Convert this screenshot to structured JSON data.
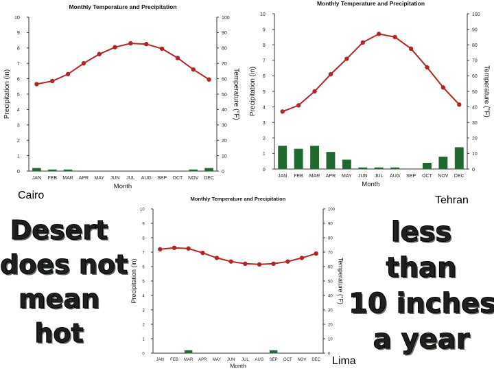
{
  "cities": {
    "cairo": "Cairo",
    "tehran": "Tehran",
    "lima": "Lima"
  },
  "slogans": {
    "left": [
      "Desert",
      "does not",
      "mean",
      "hot"
    ],
    "right": [
      "less",
      "than",
      "10 inches",
      "a year"
    ]
  },
  "colors": {
    "line": "#b32424",
    "bar": "#1f6b2f",
    "axis": "#333333"
  },
  "chart_data": [
    {
      "id": "cairo",
      "type": "bar+line",
      "title": "Monthly Temperature and Precipitation",
      "xlabel": "Month",
      "ylabel_left": "Precipitation (in)",
      "ylabel_right": "Temperature (°F)",
      "categories": [
        "JAN",
        "FEB",
        "MAR",
        "APR",
        "MAY",
        "JUN",
        "JUL",
        "AUG",
        "SEP",
        "OCT",
        "NOV",
        "DEC"
      ],
      "ylim_left": [
        0,
        10
      ],
      "ylim_right": [
        0,
        100
      ],
      "left_ticks": [
        "0",
        "1",
        "2",
        "3",
        "4",
        "5",
        "6",
        "7",
        "8",
        "9",
        "10"
      ],
      "right_ticks": [
        "0",
        "10",
        "20",
        "30",
        "40",
        "50",
        "60",
        "70",
        "80",
        "90",
        "100"
      ],
      "precipitation": [
        0.2,
        0.1,
        0.1,
        0,
        0,
        0,
        0,
        0,
        0,
        0,
        0.1,
        0.2
      ],
      "temperature": [
        56.5,
        58.5,
        63,
        70,
        76,
        80.5,
        83,
        82.5,
        79.5,
        73.5,
        66,
        59.5
      ]
    },
    {
      "id": "tehran",
      "type": "bar+line",
      "title": "Monthly Temperature and Precipitation",
      "xlabel": "Month",
      "ylabel_left": "Precipitation (in)",
      "ylabel_right": "Temperature (°F)",
      "categories": [
        "JAN",
        "FEB",
        "MAR",
        "APR",
        "MAY",
        "JUN",
        "JUL",
        "AUG",
        "SEP",
        "OCT",
        "NOV",
        "DEC"
      ],
      "ylim_left": [
        0,
        10
      ],
      "ylim_right": [
        0,
        100
      ],
      "left_ticks": [
        "0",
        "1",
        "2",
        "3",
        "4",
        "5",
        "6",
        "7",
        "8",
        "9",
        "10"
      ],
      "right_ticks": [
        "0",
        "10",
        "20",
        "30",
        "40",
        "50",
        "60",
        "70",
        "80",
        "90",
        "100"
      ],
      "precipitation": [
        1.5,
        1.3,
        1.5,
        1.1,
        0.6,
        0.1,
        0.1,
        0.1,
        0,
        0.4,
        0.8,
        1.4
      ],
      "temperature": [
        37,
        41,
        50,
        61,
        71,
        81.5,
        87,
        85,
        77.5,
        65.5,
        52.5,
        41.5
      ]
    },
    {
      "id": "lima",
      "type": "bar+line",
      "title": "Monthly Temperature and Precipitation",
      "xlabel": "Month",
      "ylabel_left": "Precipitation (in)",
      "ylabel_right": "Temperature (°F)",
      "categories": [
        "JAN",
        "FEB",
        "MAR",
        "APR",
        "MAY",
        "JUN",
        "JUL",
        "AUG",
        "SEP",
        "OCT",
        "NOV",
        "DEC"
      ],
      "ylim_left": [
        0,
        10
      ],
      "ylim_right": [
        0,
        100
      ],
      "left_ticks": [
        "0",
        "1",
        "2",
        "3",
        "4",
        "5",
        "6",
        "7",
        "8",
        "9",
        "10"
      ],
      "right_ticks": [
        "0",
        "10",
        "20",
        "30",
        "40",
        "50",
        "60",
        "70",
        "80",
        "90",
        "100"
      ],
      "precipitation": [
        0,
        0,
        0.2,
        0,
        0,
        0,
        0,
        0,
        0.2,
        0,
        0,
        0
      ],
      "temperature": [
        72,
        73,
        72.5,
        69.5,
        66,
        63.5,
        62,
        61.5,
        62,
        63.5,
        66,
        69
      ]
    }
  ]
}
